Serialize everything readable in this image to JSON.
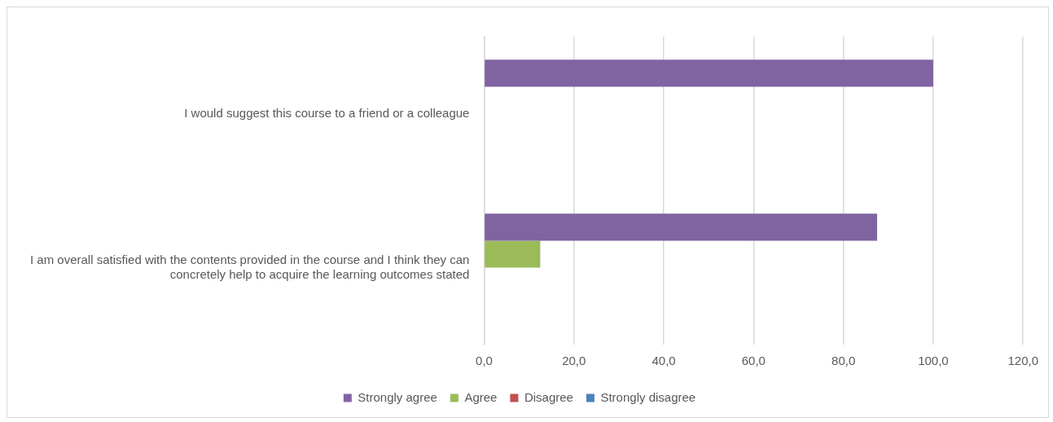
{
  "chart_data": {
    "type": "bar",
    "orientation": "horizontal",
    "categories": [
      "I would suggest this course to a friend or a colleague",
      "I am overall satisfied with the contents provided in the course and I think they can concretely help to acquire the learning outcomes stated"
    ],
    "series": [
      {
        "name": "Strongly agree",
        "color": "#8064a2",
        "values": [
          100,
          87.5
        ]
      },
      {
        "name": "Agree",
        "color": "#9bbb59",
        "values": [
          0,
          12.5
        ]
      },
      {
        "name": "Disagree",
        "color": "#c0504d",
        "values": [
          0,
          0
        ]
      },
      {
        "name": "Strongly disagree",
        "color": "#4f81bd",
        "values": [
          0,
          0
        ]
      }
    ],
    "xlim": [
      0,
      120
    ],
    "xticks": [
      {
        "value": 0,
        "label": "0,0"
      },
      {
        "value": 20,
        "label": "20,0"
      },
      {
        "value": 40,
        "label": "40,0"
      },
      {
        "value": 60,
        "label": "60,0"
      },
      {
        "value": 80,
        "label": "80,0"
      },
      {
        "value": 100,
        "label": "100,0"
      },
      {
        "value": 120,
        "label": "120,0"
      }
    ],
    "grid": "x",
    "legend": "bottom"
  }
}
